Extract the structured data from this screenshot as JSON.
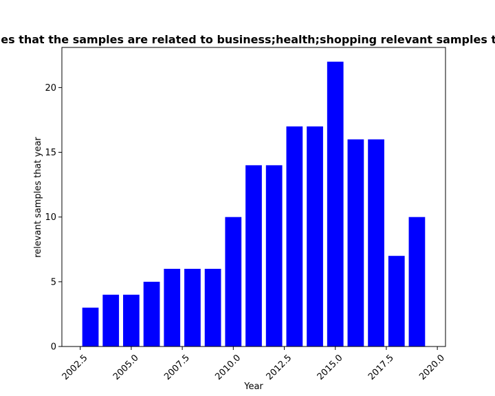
{
  "chart_data": {
    "type": "bar",
    "title": "Number of samples that the samples are related to business;health;shopping relevant samples that year in privacy",
    "xlabel": "Year",
    "ylabel": "relevant samples that year",
    "x": [
      2003,
      2004,
      2005,
      2006,
      2007,
      2008,
      2009,
      2010,
      2011,
      2012,
      2013,
      2014,
      2015,
      2016,
      2017,
      2018,
      2019
    ],
    "values": [
      3,
      4,
      4,
      5,
      6,
      6,
      6,
      10,
      14,
      14,
      17,
      17,
      22,
      16,
      16,
      7,
      10
    ],
    "xlim": [
      2001.6,
      2020.4
    ],
    "ylim": [
      0,
      23.1
    ],
    "xticks": [
      "2002.5",
      "2005.0",
      "2007.5",
      "2010.0",
      "2012.5",
      "2015.0",
      "2017.5",
      "2020.0"
    ],
    "yticks": [
      "0",
      "5",
      "10",
      "15",
      "20"
    ],
    "bar_color": "#0000ff",
    "grid": false,
    "legend": "none"
  }
}
